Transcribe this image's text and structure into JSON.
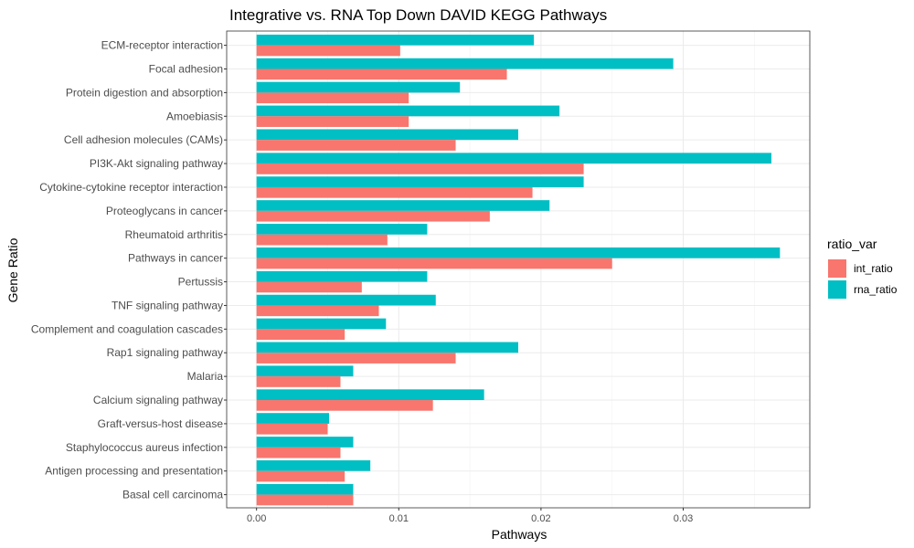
{
  "chart_data": {
    "type": "bar",
    "orientation": "horizontal",
    "title": "Integrative vs. RNA Top Down DAVID KEGG Pathways",
    "xlabel": "Pathways",
    "ylabel": "Gene Ratio",
    "xlim": [
      -0.0021,
      0.0389
    ],
    "x_ticks": [
      "0.00",
      "0.01",
      "0.02",
      "0.03"
    ],
    "x_tick_values": [
      0,
      0.01,
      0.02,
      0.03
    ],
    "grid": true,
    "legend": {
      "title": "ratio_var",
      "position": "right"
    },
    "categories": [
      "ECM-receptor interaction",
      "Focal adhesion",
      "Protein digestion and absorption",
      "Amoebiasis",
      "Cell adhesion molecules (CAMs)",
      "PI3K-Akt signaling pathway",
      "Cytokine-cytokine receptor interaction",
      "Proteoglycans in cancer",
      "Rheumatoid arthritis",
      "Pathways in cancer",
      "Pertussis",
      "TNF signaling pathway",
      "Complement and coagulation cascades",
      "Rap1 signaling pathway",
      "Malaria",
      "Calcium signaling pathway",
      "Graft-versus-host disease",
      "Staphylococcus aureus infection",
      "Antigen processing and presentation",
      "Basal cell carcinoma"
    ],
    "series": [
      {
        "name": "int_ratio",
        "color": "#F8766D",
        "values": [
          0.0101,
          0.0176,
          0.0107,
          0.0107,
          0.014,
          0.023,
          0.0194,
          0.0164,
          0.0092,
          0.025,
          0.0074,
          0.0086,
          0.0062,
          0.014,
          0.0059,
          0.0124,
          0.005,
          0.0059,
          0.0062,
          0.0068
        ]
      },
      {
        "name": "rna_ratio",
        "color": "#00BFC4",
        "values": [
          0.0195,
          0.0293,
          0.0143,
          0.0213,
          0.0184,
          0.0362,
          0.023,
          0.0206,
          0.012,
          0.0368,
          0.012,
          0.0126,
          0.0091,
          0.0184,
          0.0068,
          0.016,
          0.0051,
          0.0068,
          0.008,
          0.0068
        ]
      }
    ]
  }
}
